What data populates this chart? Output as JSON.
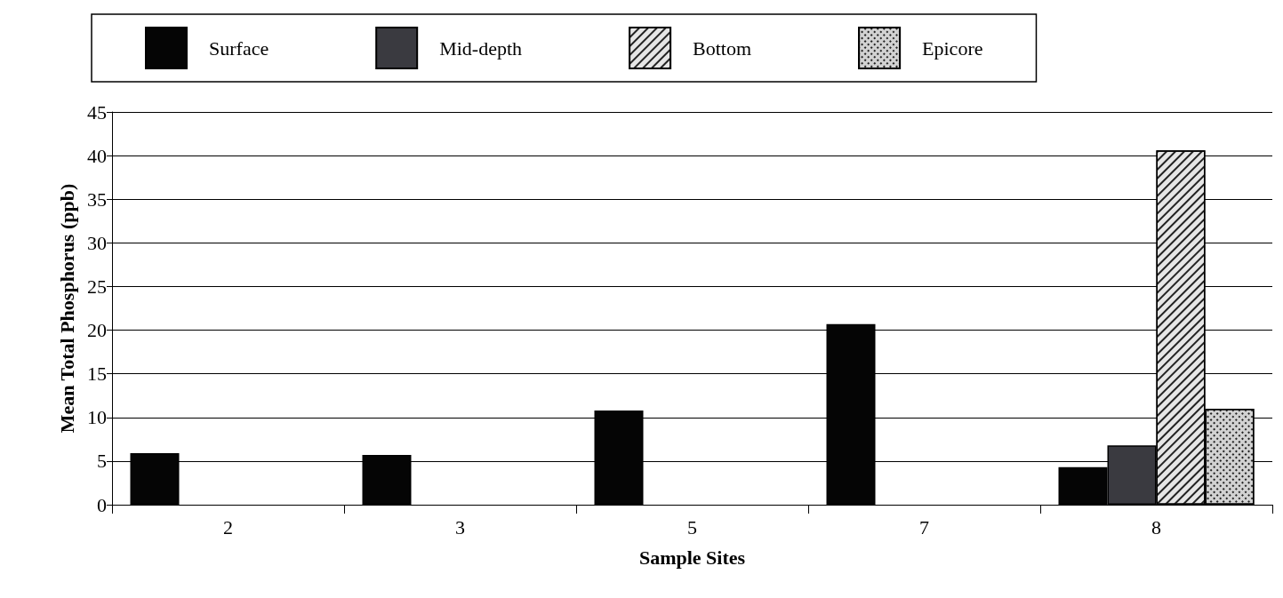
{
  "chart_data": {
    "type": "bar",
    "xlabel": "Sample Sites",
    "ylabel": "Mean Total Phosphorus (ppb)",
    "categories": [
      "2",
      "3",
      "5",
      "7",
      "8"
    ],
    "series": [
      {
        "name": "Surface",
        "color": "#050505",
        "values": [
          5.9,
          5.7,
          10.8,
          20.7,
          4.3
        ]
      },
      {
        "name": "Mid-depth",
        "color": "#3a3a40",
        "values": [
          null,
          null,
          null,
          null,
          6.8
        ]
      },
      {
        "name": "Bottom",
        "color": "#e6e6e6",
        "values": [
          null,
          null,
          null,
          null,
          40.6
        ]
      },
      {
        "name": "Epicore",
        "color": "#d2d2d2",
        "values": [
          null,
          null,
          null,
          null,
          11.0
        ]
      }
    ],
    "ylim": [
      0,
      45
    ],
    "yticks": [
      0,
      5,
      10,
      15,
      20,
      25,
      30,
      35,
      40,
      45
    ],
    "grid": "y",
    "legend": "top"
  }
}
